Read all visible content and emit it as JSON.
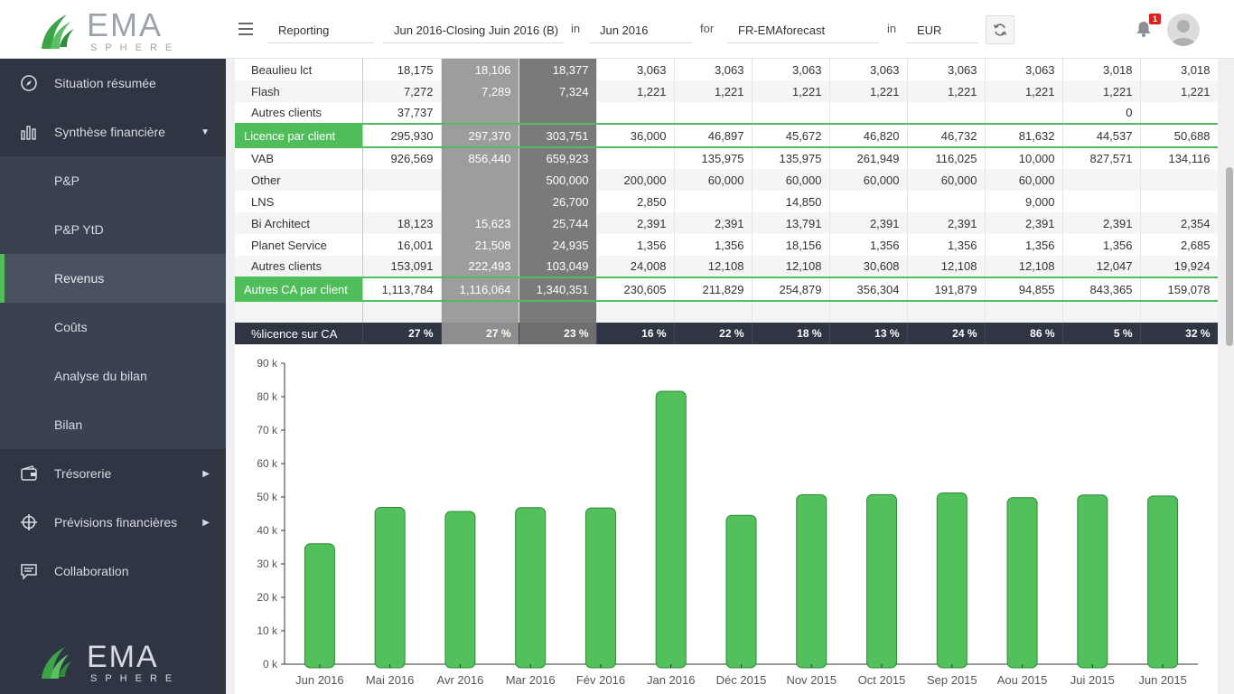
{
  "header": {
    "filters": [
      {
        "value": "Reporting"
      },
      {
        "value": "Jun 2016-Closing Juin 2016 (B)"
      },
      {
        "value": "Jun 2016"
      },
      {
        "value": "FR-EMAforecast"
      },
      {
        "value": "EUR"
      }
    ],
    "connectors": [
      "in",
      "for",
      "in"
    ],
    "notification_count": "1",
    "logo": {
      "main": "EMA",
      "sub": "SPHERE"
    }
  },
  "sidebar": {
    "items": [
      {
        "label": "Situation résumée",
        "icon": "compass-icon"
      },
      {
        "label": "Synthèse financière",
        "icon": "bar-chart-icon",
        "arrow": "▼"
      },
      {
        "label": "P&P"
      },
      {
        "label": "P&P YtD"
      },
      {
        "label": "Revenus"
      },
      {
        "label": "Coûts"
      },
      {
        "label": "Analyse du bilan"
      },
      {
        "label": "Bilan"
      },
      {
        "label": "Trésorerie",
        "icon": "wallet-icon",
        "arrow": "▶"
      },
      {
        "label": "Prévisions financières",
        "icon": "crosshair-icon",
        "arrow": "▶"
      },
      {
        "label": "Collaboration",
        "icon": "chat-icon"
      }
    ]
  },
  "table": {
    "rows": [
      {
        "type": "normal",
        "label": "Beaulieu lct",
        "values": [
          "18,175",
          "18,106",
          "18,377",
          "3,063",
          "3,063",
          "3,063",
          "3,063",
          "3,063",
          "3,063",
          "3,018",
          "3,018"
        ]
      },
      {
        "type": "alt",
        "label": "Flash",
        "values": [
          "7,272",
          "7,289",
          "7,324",
          "1,221",
          "1,221",
          "1,221",
          "1,221",
          "1,221",
          "1,221",
          "1,221",
          "1,221"
        ]
      },
      {
        "type": "normal",
        "label": "Autres clients",
        "values": [
          "37,737",
          "",
          "",
          "",
          "",
          "",
          "",
          "",
          "",
          "0",
          ""
        ]
      },
      {
        "type": "sub",
        "label": "Licence par client",
        "values": [
          "295,930",
          "297,370",
          "303,751",
          "36,000",
          "46,897",
          "45,672",
          "46,820",
          "46,732",
          "81,632",
          "44,537",
          "50,688"
        ]
      },
      {
        "type": "normal",
        "label": "VAB",
        "values": [
          "926,569",
          "856,440",
          "659,923",
          "",
          "135,975",
          "135,975",
          "261,949",
          "116,025",
          "10,000",
          "827,571",
          "134,116"
        ]
      },
      {
        "type": "alt",
        "label": "Other",
        "values": [
          "",
          "",
          "500,000",
          "200,000",
          "60,000",
          "60,000",
          "60,000",
          "60,000",
          "60,000",
          "",
          ""
        ]
      },
      {
        "type": "normal",
        "label": "LNS",
        "values": [
          "",
          "",
          "26,700",
          "2,850",
          "",
          "14,850",
          "",
          "",
          "9,000",
          "",
          ""
        ]
      },
      {
        "type": "alt",
        "label": "Bi Architect",
        "values": [
          "18,123",
          "15,623",
          "25,744",
          "2,391",
          "2,391",
          "13,791",
          "2,391",
          "2,391",
          "2,391",
          "2,391",
          "2,354"
        ]
      },
      {
        "type": "normal",
        "label": "Planet Service",
        "values": [
          "16,001",
          "21,508",
          "24,935",
          "1,356",
          "1,356",
          "18,156",
          "1,356",
          "1,356",
          "1,356",
          "1,356",
          "2,685"
        ]
      },
      {
        "type": "alt",
        "label": "Autres clients",
        "values": [
          "153,091",
          "222,493",
          "103,049",
          "24,008",
          "12,108",
          "12,108",
          "30,608",
          "12,108",
          "12,108",
          "12,047",
          "19,924"
        ]
      },
      {
        "type": "sub",
        "label": "Autres CA par client",
        "values": [
          "1,113,784",
          "1,116,064",
          "1,340,351",
          "230,605",
          "211,829",
          "254,879",
          "356,304",
          "191,879",
          "94,855",
          "843,365",
          "159,078"
        ]
      },
      {
        "type": "blank",
        "label": "",
        "values": [
          "",
          "",
          "",
          "",
          "",
          "",
          "",
          "",
          "",
          "",
          ""
        ]
      },
      {
        "type": "pct",
        "label": "%licence sur CA",
        "values": [
          "27 %",
          "27 %",
          "23 %",
          "16 %",
          "22 %",
          "18 %",
          "13 %",
          "24 %",
          "86 %",
          "5 %",
          "32 %"
        ]
      }
    ]
  },
  "chart_data": {
    "type": "bar",
    "categories": [
      "Jun 2016",
      "Mai 2016",
      "Avr 2016",
      "Mar 2016",
      "Fév 2016",
      "Jan 2016",
      "Déc 2015",
      "Nov 2015",
      "Oct 2015",
      "Sep 2015",
      "Aou 2015",
      "Jui 2015",
      "Jun 2015"
    ],
    "values": [
      36000,
      46897,
      45672,
      46820,
      46732,
      81632,
      44537,
      50688,
      50700,
      51200,
      49800,
      50600,
      50300
    ],
    "ylim": [
      0,
      90000
    ],
    "yticks": [
      "0 k",
      "10 k",
      "20 k",
      "30 k",
      "40 k",
      "50 k",
      "60 k",
      "70 k",
      "80 k",
      "90 k"
    ],
    "bar_color": "#52c15c",
    "bar_stroke": "#2e8a37",
    "grid": false
  },
  "colors": {
    "accent": "#4fbe5a",
    "sidebar": "#2f3543",
    "pct_row": "#2f3543"
  }
}
